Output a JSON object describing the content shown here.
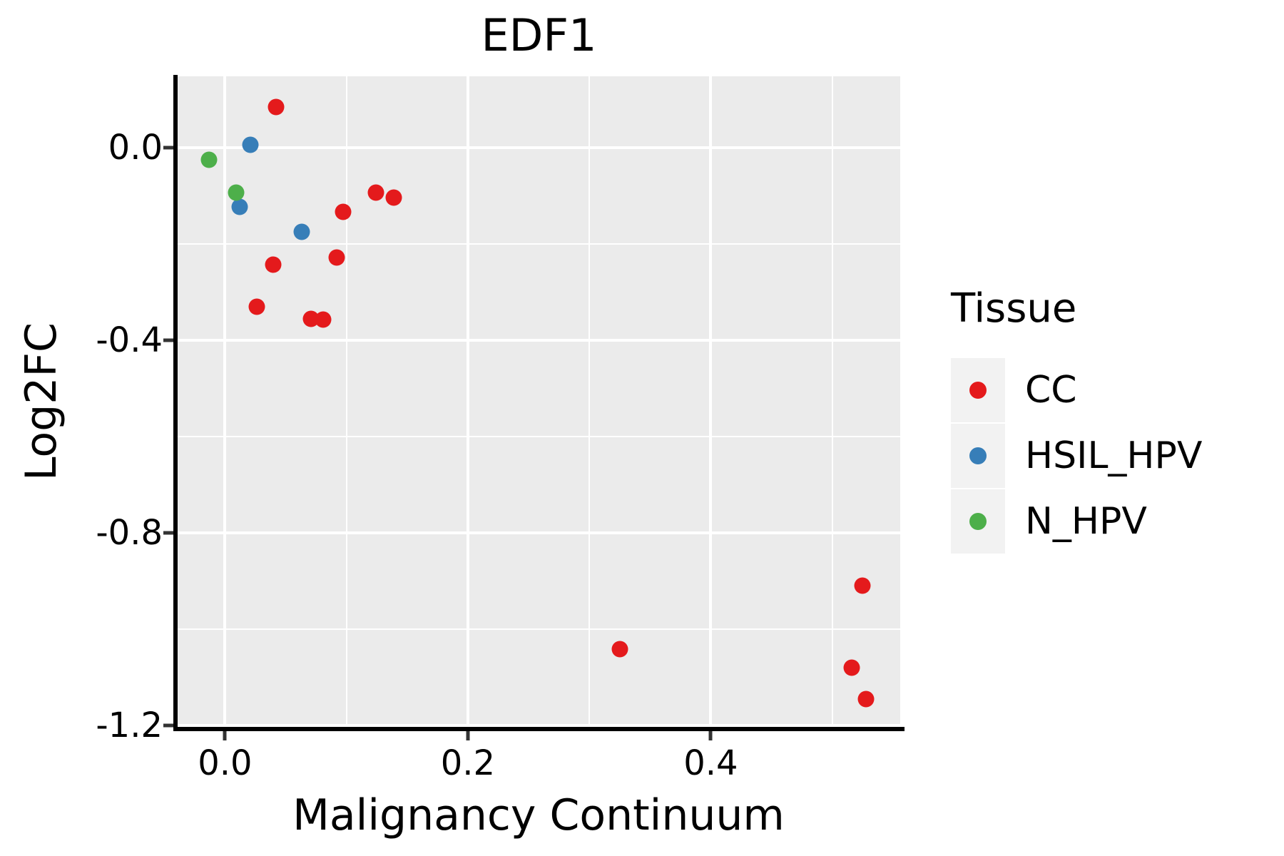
{
  "title": "EDF1",
  "axes": {
    "x": {
      "label": "Malignancy Continuum",
      "tick_labels": [
        "0.0",
        "0.2",
        "0.4"
      ],
      "tick_values": [
        0.0,
        0.2,
        0.4
      ],
      "minor_tick_values": [
        0.1,
        0.3,
        0.5
      ]
    },
    "y": {
      "label": "Log2FC",
      "tick_labels": [
        "0.0",
        "-0.4",
        "-0.8",
        "-1.2"
      ],
      "tick_values": [
        0.0,
        -0.4,
        -0.8,
        -1.2
      ],
      "minor_tick_values": [
        -0.2,
        -0.6,
        -1.0
      ]
    }
  },
  "legend": {
    "title": "Tissue",
    "items": [
      {
        "label": "CC",
        "color": "#e41a1c"
      },
      {
        "label": "HSIL_HPV",
        "color": "#377eb8"
      },
      {
        "label": "N_HPV",
        "color": "#4daf4a"
      }
    ]
  },
  "colors": {
    "panel_bg": "#ebebeb",
    "grid_major": "#ffffff",
    "grid_minor": "#ffffff",
    "axis_line": "#000000",
    "tick_mark": "#333333",
    "text": "#000000",
    "legend_key_bg": "#f2f2f2"
  },
  "chart_data": {
    "type": "scatter",
    "title": "EDF1",
    "xlabel": "Malignancy Continuum",
    "ylabel": "Log2FC",
    "xlim": [
      -0.039,
      0.556
    ],
    "ylim": [
      -1.204,
      0.148
    ],
    "x_ticks": [
      0.0,
      0.2,
      0.4
    ],
    "y_ticks": [
      0.0,
      -0.4,
      -0.8,
      -1.2
    ],
    "x_minor_ticks": [
      0.1,
      0.3,
      0.5
    ],
    "y_minor_ticks": [
      -0.2,
      -0.6,
      -1.0
    ],
    "grid": true,
    "legend_position": "right",
    "point_radius_px": 11.5,
    "series": [
      {
        "name": "CC",
        "color": "#e41a1c",
        "points": [
          [
            0.042,
            0.084
          ],
          [
            0.097,
            -0.133
          ],
          [
            0.124,
            -0.093
          ],
          [
            0.139,
            -0.104
          ],
          [
            0.092,
            -0.228
          ],
          [
            0.04,
            -0.243
          ],
          [
            0.026,
            -0.331
          ],
          [
            0.071,
            -0.356
          ],
          [
            0.081,
            -0.357
          ],
          [
            0.325,
            -1.041
          ],
          [
            0.525,
            -0.909
          ],
          [
            0.516,
            -1.08
          ],
          [
            0.528,
            -1.145
          ]
        ]
      },
      {
        "name": "HSIL_HPV",
        "color": "#377eb8",
        "points": [
          [
            0.021,
            0.006
          ],
          [
            0.012,
            -0.123
          ],
          [
            0.063,
            -0.175
          ]
        ]
      },
      {
        "name": "N_HPV",
        "color": "#4daf4a",
        "points": [
          [
            -0.013,
            -0.025
          ],
          [
            0.009,
            -0.094
          ]
        ]
      }
    ]
  }
}
